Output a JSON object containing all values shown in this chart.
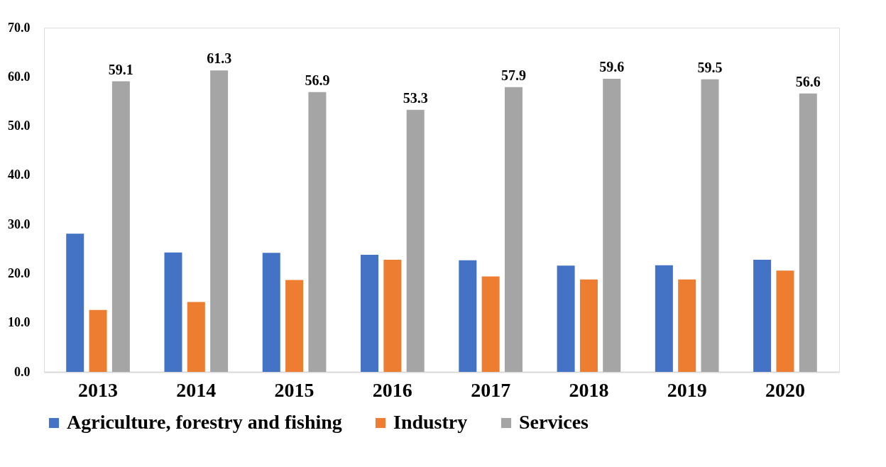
{
  "chart_data": {
    "type": "bar",
    "categories": [
      "2013",
      "2014",
      "2015",
      "2016",
      "2017",
      "2018",
      "2019",
      "2020"
    ],
    "series": [
      {
        "name": "Agriculture, forestry and fishing",
        "color": "#4472c4",
        "values": [
          28.1,
          24.3,
          24.2,
          23.8,
          22.7,
          21.6,
          21.7,
          22.8
        ]
      },
      {
        "name": "Industry",
        "color": "#ed7d31",
        "values": [
          12.6,
          14.2,
          18.7,
          22.8,
          19.4,
          18.8,
          18.8,
          20.6
        ]
      },
      {
        "name": "Services",
        "color": "#a5a5a5",
        "values": [
          59.1,
          61.3,
          56.9,
          53.3,
          57.9,
          59.6,
          59.5,
          56.6
        ],
        "value_labels": [
          "59.1",
          "61.3",
          "56.9",
          "53.3",
          "57.9",
          "59.6",
          "59.5",
          "56.6"
        ]
      }
    ],
    "ylim": [
      0,
      70
    ],
    "yticks": [
      {
        "value": 0,
        "label": "0.0"
      },
      {
        "value": 10,
        "label": "10.0"
      },
      {
        "value": 20,
        "label": "20.0"
      },
      {
        "value": 30,
        "label": "30.0"
      },
      {
        "value": 40,
        "label": "40.0"
      },
      {
        "value": 50,
        "label": "50.0"
      },
      {
        "value": 60,
        "label": "60.0"
      },
      {
        "value": 70,
        "label": "70.0"
      }
    ],
    "grid": false,
    "legend": "bottom"
  }
}
